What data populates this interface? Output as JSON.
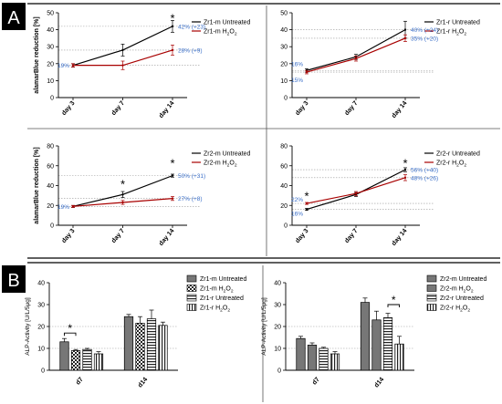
{
  "sections": [
    {
      "label": "A",
      "label_color": "#ffffff",
      "label_bg": "#000000"
    },
    {
      "label": "B",
      "label_color": "#ffffff",
      "label_bg": "#000000"
    }
  ],
  "colors": {
    "untreated": "#000000",
    "treated": "#a80000",
    "annotation": "#3a6fc9",
    "dotted_ref": "#9a9a9a",
    "bar_fill": "#777777"
  },
  "chart_data": [
    {
      "type": "line",
      "panel": "A1",
      "ylabel": "alamarBlue reduction [%]",
      "ylim": [
        0,
        50
      ],
      "yticks": [
        0,
        10,
        20,
        30,
        40,
        50
      ],
      "categories": [
        "day 3",
        "day 7",
        "day 14"
      ],
      "series": [
        {
          "name_main": "Zr1-m Untreated",
          "name_sub": "",
          "values": [
            19,
            28,
            42
          ],
          "err": [
            1.0,
            3.5,
            3.5
          ],
          "color": "#000000"
        },
        {
          "name_main": "Zr1-m H",
          "name_sub": "2",
          "name_tail": "O",
          "name_sub2": "2",
          "values": [
            19,
            19,
            28
          ],
          "err": [
            1.0,
            2.5,
            3.0
          ],
          "color": "#a80000"
        }
      ],
      "annotations": [
        {
          "text": "19%",
          "x": 0,
          "y": 19
        },
        {
          "text": "42% (+23)",
          "x": 2,
          "y": 42
        },
        {
          "text": "28% (+9)",
          "x": 2,
          "y": 28
        }
      ],
      "stars": [
        {
          "text": "*",
          "x": 2,
          "y": 47
        }
      ],
      "ref_lines": [
        19,
        28,
        42
      ]
    },
    {
      "type": "line",
      "panel": "A2",
      "ylabel": "",
      "ylim": [
        0,
        50
      ],
      "yticks": [
        0,
        10,
        20,
        30,
        40,
        50
      ],
      "categories": [
        "day 3",
        "day 7",
        "day 14"
      ],
      "series": [
        {
          "name_main": "Zr1-r Untreated",
          "name_sub": "",
          "values": [
            16,
            24,
            40
          ],
          "err": [
            1.0,
            1.5,
            5.0
          ],
          "color": "#000000"
        },
        {
          "name_main": "Zr1-r H",
          "name_sub": "2",
          "name_tail": "O",
          "name_sub2": "2",
          "values": [
            15,
            23,
            35
          ],
          "err": [
            1.0,
            1.5,
            2.0
          ],
          "color": "#a80000"
        }
      ],
      "annotations": [
        {
          "text": "16%",
          "x": 0,
          "y": 20
        },
        {
          "text": "15%",
          "x": 0,
          "y": 10.5
        },
        {
          "text": "40% (+24)",
          "x": 2,
          "y": 40
        },
        {
          "text": "35% (+20)",
          "x": 2,
          "y": 35
        }
      ],
      "stars": [],
      "ref_lines": [
        15,
        16,
        35,
        40
      ]
    },
    {
      "type": "line",
      "panel": "A3",
      "ylabel": "alamarBlue reduction [%]",
      "ylim": [
        0,
        80
      ],
      "yticks": [
        0,
        20,
        40,
        60,
        80
      ],
      "categories": [
        "day 3",
        "day 7",
        "day 14"
      ],
      "series": [
        {
          "name_main": "Zr2-m Untreated",
          "name_sub": "",
          "values": [
            19,
            31,
            50
          ],
          "err": [
            1.0,
            3.0,
            1.5
          ],
          "color": "#000000"
        },
        {
          "name_main": "Zr2-m H",
          "name_sub": "2",
          "name_tail": "O",
          "name_sub2": "2",
          "values": [
            19,
            23,
            27
          ],
          "err": [
            1.0,
            2.0,
            2.0
          ],
          "color": "#a80000"
        }
      ],
      "annotations": [
        {
          "text": "19%",
          "x": 0,
          "y": 19
        },
        {
          "text": "50% (+31)",
          "x": 2,
          "y": 50
        },
        {
          "text": "27% (+8)",
          "x": 2,
          "y": 27
        }
      ],
      "stars": [
        {
          "text": "*",
          "x": 1,
          "y": 42
        },
        {
          "text": "*",
          "x": 2,
          "y": 63
        }
      ],
      "ref_lines": [
        19,
        27,
        50
      ]
    },
    {
      "type": "line",
      "panel": "A4",
      "ylabel": "",
      "ylim": [
        0,
        80
      ],
      "yticks": [
        0,
        20,
        40,
        60,
        80
      ],
      "categories": [
        "day 3",
        "day 7",
        "day 14"
      ],
      "series": [
        {
          "name_main": "Zr2-r Untreated",
          "name_sub": "",
          "values": [
            16,
            31,
            56
          ],
          "err": [
            1.0,
            2.0,
            2.0
          ],
          "color": "#000000"
        },
        {
          "name_main": "Zr2-r H",
          "name_sub": "2",
          "name_tail": "O",
          "name_sub2": "2",
          "values": [
            22,
            32,
            48
          ],
          "err": [
            1.0,
            2.0,
            3.0
          ],
          "color": "#a80000"
        }
      ],
      "annotations": [
        {
          "text": "22%",
          "x": 0,
          "y": 26
        },
        {
          "text": "16%",
          "x": 0,
          "y": 12
        },
        {
          "text": "56% (+40)",
          "x": 2,
          "y": 56
        },
        {
          "text": "48% (+26)",
          "x": 2,
          "y": 48
        }
      ],
      "stars": [
        {
          "text": "*",
          "x": 0,
          "y": 30
        },
        {
          "text": "*",
          "x": 2,
          "y": 63
        }
      ],
      "ref_lines": [
        16,
        22,
        48,
        56
      ]
    },
    {
      "type": "bar",
      "panel": "B1",
      "ylabel": "ALP-Activity [U/L/5μg]",
      "ylim": [
        0,
        40
      ],
      "yticks": [
        0,
        10,
        20,
        30,
        40
      ],
      "categories": [
        "d7",
        "d14"
      ],
      "series": [
        {
          "name_main": "Zr1-m Untreated",
          "name_sub": "",
          "pattern": "solid",
          "values": [
            13,
            24.5
          ],
          "err": [
            1.5,
            1.0
          ]
        },
        {
          "name_main": "Zr1-m H",
          "name_sub": "2",
          "name_tail": "O",
          "name_sub2": "2",
          "pattern": "checker",
          "values": [
            9,
            21.5
          ],
          "err": [
            0.5,
            3.0
          ]
        },
        {
          "name_main": "Zr1-r Untreated",
          "name_sub": "",
          "pattern": "hlines",
          "values": [
            9.5,
            23.5
          ],
          "err": [
            0.5,
            4.0
          ]
        },
        {
          "name_main": "Zr1-r H",
          "name_sub": "2",
          "name_tail": "O",
          "name_sub2": "2",
          "pattern": "vlines",
          "values": [
            7.5,
            20.5
          ],
          "err": [
            1.0,
            1.5
          ]
        }
      ],
      "brackets": [
        {
          "cat": 0,
          "from": 0,
          "to": 1,
          "y": 17,
          "text": "*"
        }
      ],
      "ref_lines": [
        10,
        20
      ]
    },
    {
      "type": "bar",
      "panel": "B2",
      "ylabel": "ALP-Activity [U/L/5μg]",
      "ylim": [
        0,
        40
      ],
      "yticks": [
        0,
        10,
        20,
        30,
        40
      ],
      "categories": [
        "d7",
        "d14"
      ],
      "series": [
        {
          "name_main": "Zr2-m Untreated",
          "name_sub": "",
          "pattern": "solid",
          "values": [
            14.5,
            31
          ],
          "err": [
            1.0,
            2.0
          ]
        },
        {
          "name_main": "Zr2-m H",
          "name_sub": "2",
          "name_tail": "O",
          "name_sub2": "2",
          "pattern": "solid",
          "values": [
            11.5,
            23
          ],
          "err": [
            1.0,
            4.0
          ]
        },
        {
          "name_main": "Zr2-r Untreated",
          "name_sub": "",
          "pattern": "hlines",
          "values": [
            10,
            24
          ],
          "err": [
            0.5,
            2.0
          ]
        },
        {
          "name_main": "Zr2-r H",
          "name_sub": "2",
          "name_tail": "O",
          "name_sub2": "2",
          "pattern": "vlines",
          "values": [
            7.5,
            12
          ],
          "err": [
            1.0,
            3.5
          ]
        }
      ],
      "brackets": [
        {
          "cat": 1,
          "from": 2,
          "to": 3,
          "y": 30,
          "text": "*"
        }
      ],
      "ref_lines": [
        10,
        20
      ]
    }
  ]
}
